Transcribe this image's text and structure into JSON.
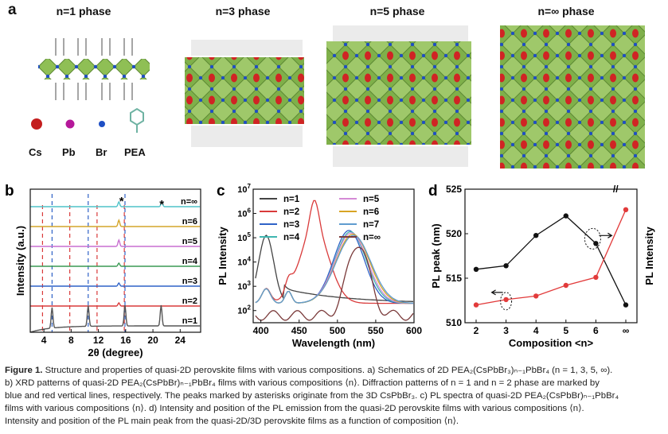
{
  "panel_a": {
    "letter": "a",
    "phases": [
      "n=1 phase",
      "n=3 phase",
      "n=5 phase",
      "n=∞ phase"
    ],
    "legend": [
      "Cs",
      "Pb",
      "Br",
      "PEA"
    ],
    "legend_colors": [
      "#c41e1e",
      "#b5189a",
      "#1f4fc4",
      "#6fb3a3"
    ]
  },
  "chart_data": [
    {
      "type": "line",
      "panel": "b",
      "xlabel": "2θ (degree)",
      "ylabel": "Intensity (a.u.)",
      "xlim": [
        2,
        27
      ],
      "xticks": [
        "4",
        "8",
        "12",
        "16",
        "20",
        "24"
      ],
      "series_labels": [
        "n=∞",
        "n=6",
        "n=5",
        "n=4",
        "n=3",
        "n=2",
        "n=1"
      ],
      "series_colors": [
        "#4fc3c9",
        "#d4a52a",
        "#c86fd0",
        "#3a9a53",
        "#2f62c7",
        "#d93a3a",
        "#555555"
      ],
      "asterisk": "*",
      "peaks_n1": [
        5.2,
        10.5,
        15.9,
        21.2
      ],
      "peaks_3d": [
        15.0,
        21.3
      ],
      "blue_lines": [
        5.2,
        10.5,
        15.9
      ],
      "red_lines": [
        3.8,
        7.8,
        11.8,
        15.8
      ]
    },
    {
      "type": "line",
      "panel": "c",
      "xlabel": "Wavelength (nm)",
      "ylabel": "PL Intensity",
      "xlim": [
        390,
        600
      ],
      "xticks": [
        "400",
        "450",
        "500",
        "550",
        "600"
      ],
      "ylog": true,
      "yticks": [
        "10^2",
        "10^3",
        "10^4",
        "10^5",
        "10^6",
        "10^7"
      ],
      "legend": [
        "n=1",
        "n=2",
        "n=3",
        "n=4",
        "n=5",
        "n=6",
        "n=7",
        "n=∞"
      ],
      "series_colors": [
        "#444444",
        "#d93a3a",
        "#2f62c7",
        "#3fb6b0",
        "#d58ad6",
        "#d8a424",
        "#5f9ccf",
        "#7a3a3a"
      ],
      "peak_positions_nm": [
        407,
        470,
        515,
        517,
        518,
        520,
        521,
        527
      ]
    },
    {
      "type": "line",
      "panel": "d",
      "xlabel": "Composition <n>",
      "ylabel_left": "PL peak (nm)",
      "ylabel_right": "PL Intensity",
      "categories": [
        "2",
        "3",
        "4",
        "5",
        "6",
        "∞"
      ],
      "ylim": [
        510,
        525
      ],
      "yticks": [
        "510",
        "515",
        "520",
        "525"
      ],
      "series": [
        {
          "color": "#111111",
          "values": [
            516.0,
            516.4,
            519.8,
            522.0,
            518.9,
            512.0
          ]
        },
        {
          "color": "#e23b3b",
          "values": [
            512.0,
            512.6,
            513.0,
            514.2,
            515.1,
            522.7
          ]
        }
      ]
    }
  ],
  "caption": {
    "label": "Figure 1.",
    "lines": [
      "Structure and properties of quasi-2D perovskite films with various compositions. a) Schematics of 2D PEA₂(CsPbBr₃)ₙ₋₁PbBr₄ (n = 1, 3, 5, ∞).",
      "b) XRD patterns of quasi-2D PEA₂(CsPbBr)ₙ₋₁PbBr₄ films with various compositions ⟨n⟩. Diffraction patterns of n = 1 and n = 2 phase are marked by",
      "blue and red vertical lines, respectively. The peaks marked by asterisks originate from the 3D CsPbBr₃. c) PL spectra of quasi-2D PEA₂(CsPbBr)ₙ₋₁PbBr₄",
      "films with various compositions ⟨n⟩. d) Intensity and position of the PL emission from the quasi-2D perovskite films with various compositions ⟨n⟩.",
      "Intensity and position of the PL main peak from the quasi-2D/3D perovskite films as a function of composition ⟨n⟩."
    ]
  }
}
